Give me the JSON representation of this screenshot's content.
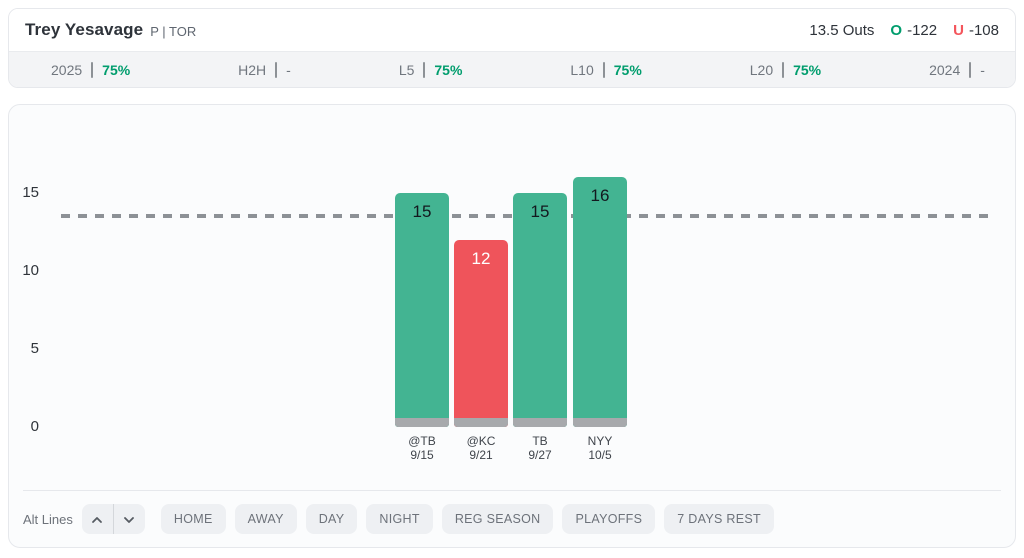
{
  "header": {
    "player_name": "Trey Yesavage",
    "position_team": "P | TOR",
    "line": "13.5 Outs",
    "over_label": "O",
    "over_odds": "-122",
    "under_label": "U",
    "under_odds": "-108"
  },
  "splits": [
    {
      "label": "2025",
      "value": "75%"
    },
    {
      "label": "H2H",
      "value": "-"
    },
    {
      "label": "L5",
      "value": "75%"
    },
    {
      "label": "L10",
      "value": "75%"
    },
    {
      "label": "L20",
      "value": "75%"
    },
    {
      "label": "2024",
      "value": "-"
    }
  ],
  "chart_data": {
    "type": "bar",
    "title": "",
    "xlabel": "",
    "ylabel": "",
    "yticks": [
      0,
      5,
      10,
      15
    ],
    "ylim": [
      0,
      16.5
    ],
    "prop_line": 13.5,
    "categories": [
      {
        "opponent": "@TB",
        "date": "9/15"
      },
      {
        "opponent": "@KC",
        "date": "9/21"
      },
      {
        "opponent": "TB",
        "date": "9/27"
      },
      {
        "opponent": "NYY",
        "date": "10/5"
      }
    ],
    "values": [
      15,
      12,
      15,
      16
    ],
    "legend": "none",
    "grid": "off",
    "colors": {
      "over_bar": "#43b492",
      "under_bar": "#ef545b",
      "bar_base": "#a7a9ac",
      "prop_line": "#8d9196"
    }
  },
  "toolbar": {
    "alt_lines_label": "Alt Lines",
    "filters": [
      "HOME",
      "AWAY",
      "DAY",
      "NIGHT",
      "REG SEASON",
      "PLAYOFFS",
      "7 DAYS REST"
    ]
  },
  "colors": {
    "over_text": "#009d6d",
    "under_text": "#f4555c",
    "hit_pct": "#009d6d"
  }
}
